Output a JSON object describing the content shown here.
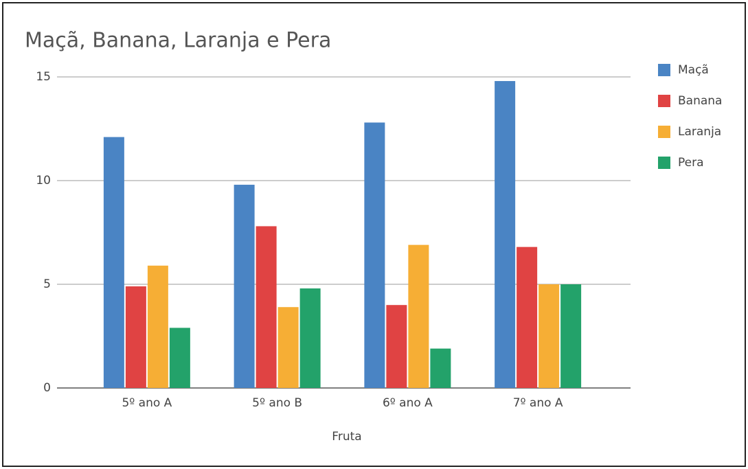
{
  "chart_data": {
    "type": "bar",
    "title": "Maçã, Banana, Laranja e Pera",
    "x_label": "Fruta",
    "categories": [
      "5º ano A",
      "5º ano B",
      "6º ano A",
      "7º ano A"
    ],
    "series": [
      {
        "name": "Maçã",
        "color": "#4a84c4",
        "values": [
          12.1,
          9.8,
          12.8,
          14.8
        ]
      },
      {
        "name": "Banana",
        "color": "#e04343",
        "values": [
          4.9,
          7.8,
          4,
          6.8
        ]
      },
      {
        "name": "Laranja",
        "color": "#f6ae35",
        "values": [
          5.9,
          3.9,
          6.9,
          5
        ]
      },
      {
        "name": "Pera",
        "color": "#23a26a",
        "values": [
          2.9,
          4.8,
          1.9,
          5
        ]
      }
    ],
    "ylim": [
      0,
      15
    ],
    "yticks": [
      0,
      5,
      10,
      15
    ],
    "grid": true,
    "legend": "right"
  }
}
